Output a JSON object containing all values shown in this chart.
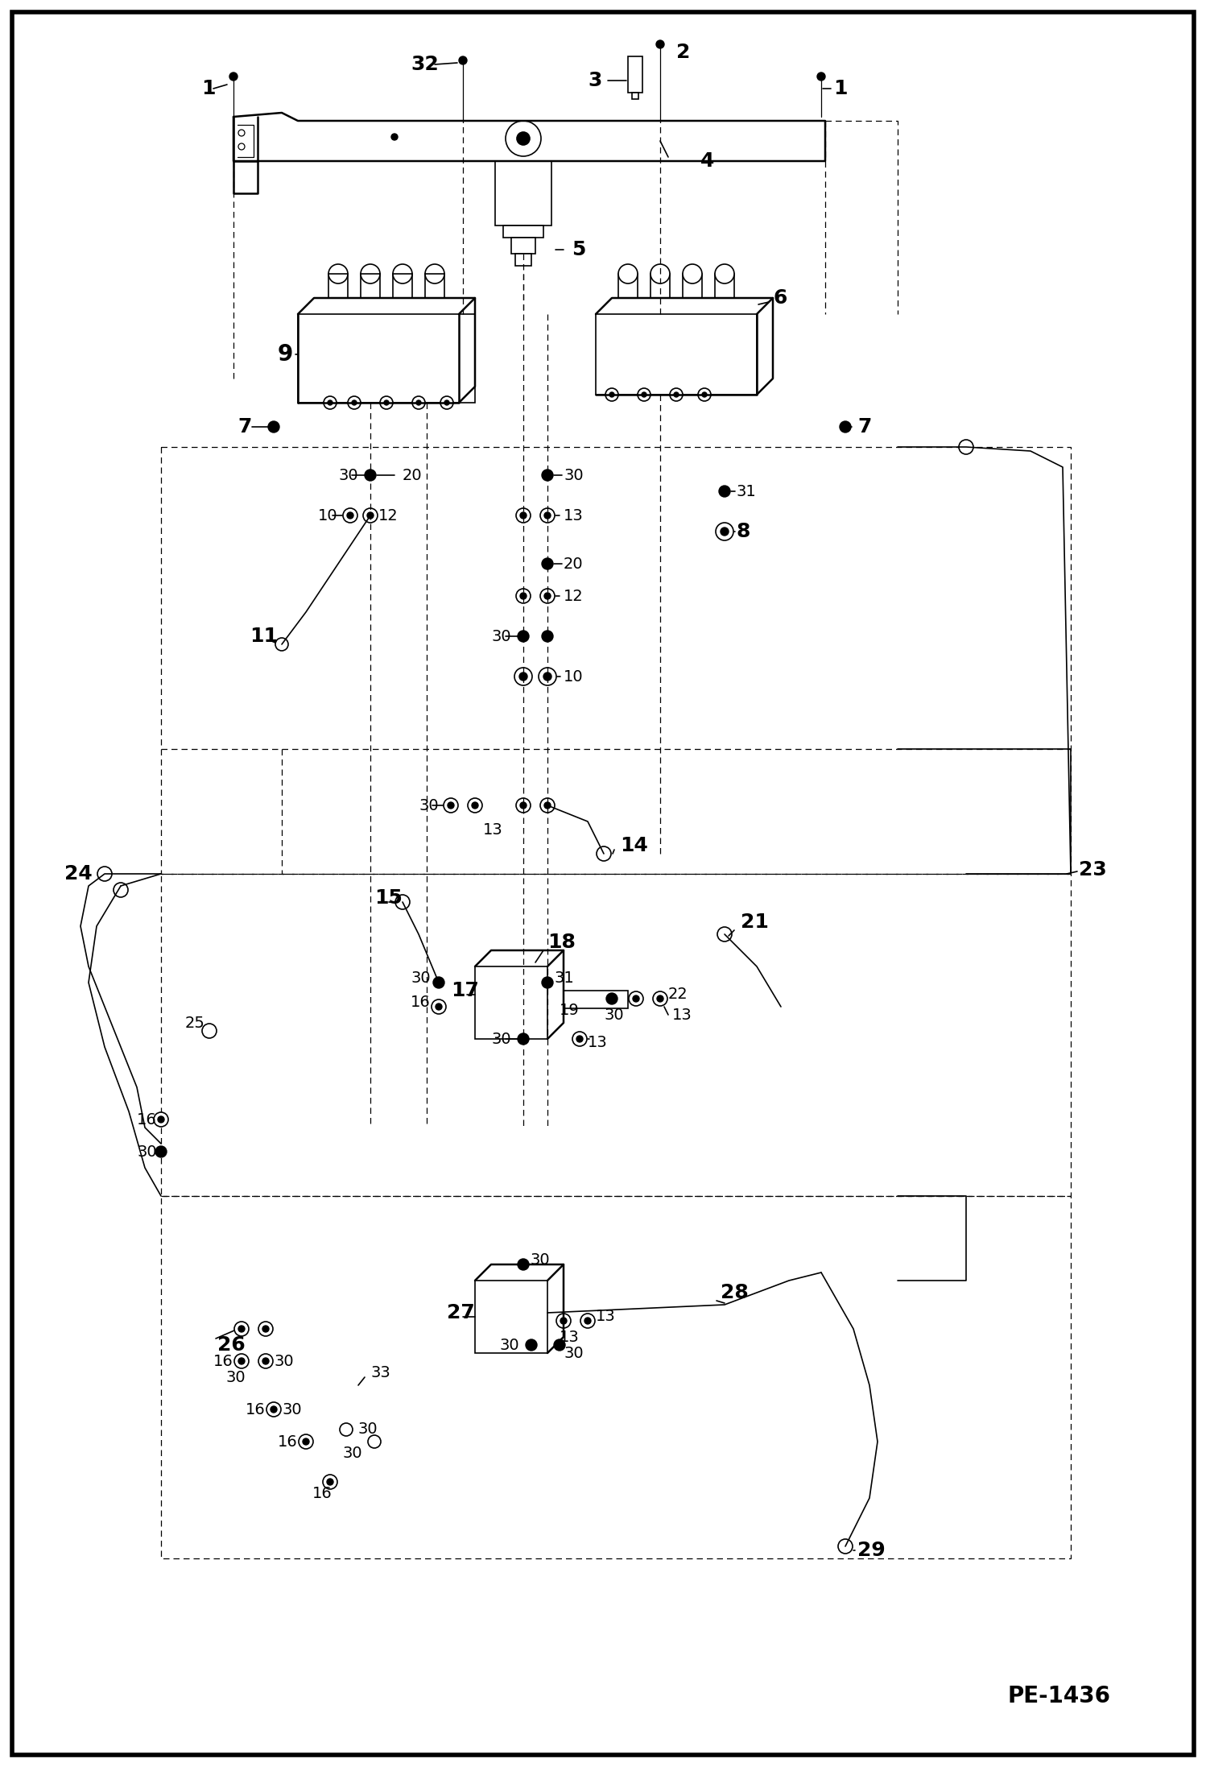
{
  "background_color": "#ffffff",
  "border_color": "#000000",
  "page_label": "PE-1436",
  "fig_width": 14.98,
  "fig_height": 21.94,
  "dpi": 100,
  "xlim": [
    0,
    1498
  ],
  "ylim": [
    0,
    2194
  ]
}
